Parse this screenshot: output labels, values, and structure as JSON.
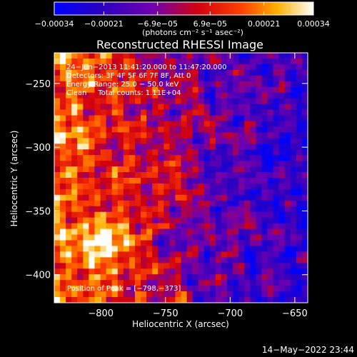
{
  "chart_data": {
    "type": "heatmap",
    "title": "Reconstructed RHESSI Image",
    "xlabel": "Heliocentric X (arcsec)",
    "ylabel": "Heliocentric Y (arcsec)",
    "xlim": [
      -836,
      -640
    ],
    "ylim": [
      -422,
      -226
    ],
    "x_ticks": [
      -800,
      -750,
      -700,
      -650
    ],
    "y_ticks": [
      -400,
      -350,
      -300,
      -250
    ],
    "x_tick_labels": [
      "−800",
      "−750",
      "−700",
      "−650"
    ],
    "y_tick_labels": [
      "−400",
      "−350",
      "−300",
      "−250"
    ],
    "colorbar": {
      "range": [
        -0.00034,
        0.00034
      ],
      "ticks": [
        -0.00034,
        -0.00021,
        -6.9e-05,
        6.9e-05,
        0.00021,
        0.00034
      ],
      "tick_labels": [
        "−0.00034",
        "−0.00021",
        "−6.9e−05",
        "6.9e−05",
        "0.00021",
        "0.00034"
      ],
      "unit_label": "(photons cm⁻² s⁻¹ asec⁻²)",
      "colors": [
        "#0000ff",
        "#3a0090",
        "#8000b0",
        "#c00000",
        "#ff2000",
        "#ff8000",
        "#ffd000",
        "#ffffff"
      ]
    },
    "annotations": [
      "24−Jun−2013 11:41:20.000 to 11:47:20.000",
      "Detectors: 3F 4F 5F 6F 7F 8F, Att 0",
      "Energy Range: 25.0 − 50.0 keV",
      "Clean     Total counts: 1.11E+04"
    ],
    "peak_label": "Position of Peak = [−798,−373]",
    "peak": [
      -798,
      -373
    ],
    "grid": false,
    "legend": "colorbar-top"
  },
  "footer": {
    "date": "14−May−2022 23:44"
  }
}
